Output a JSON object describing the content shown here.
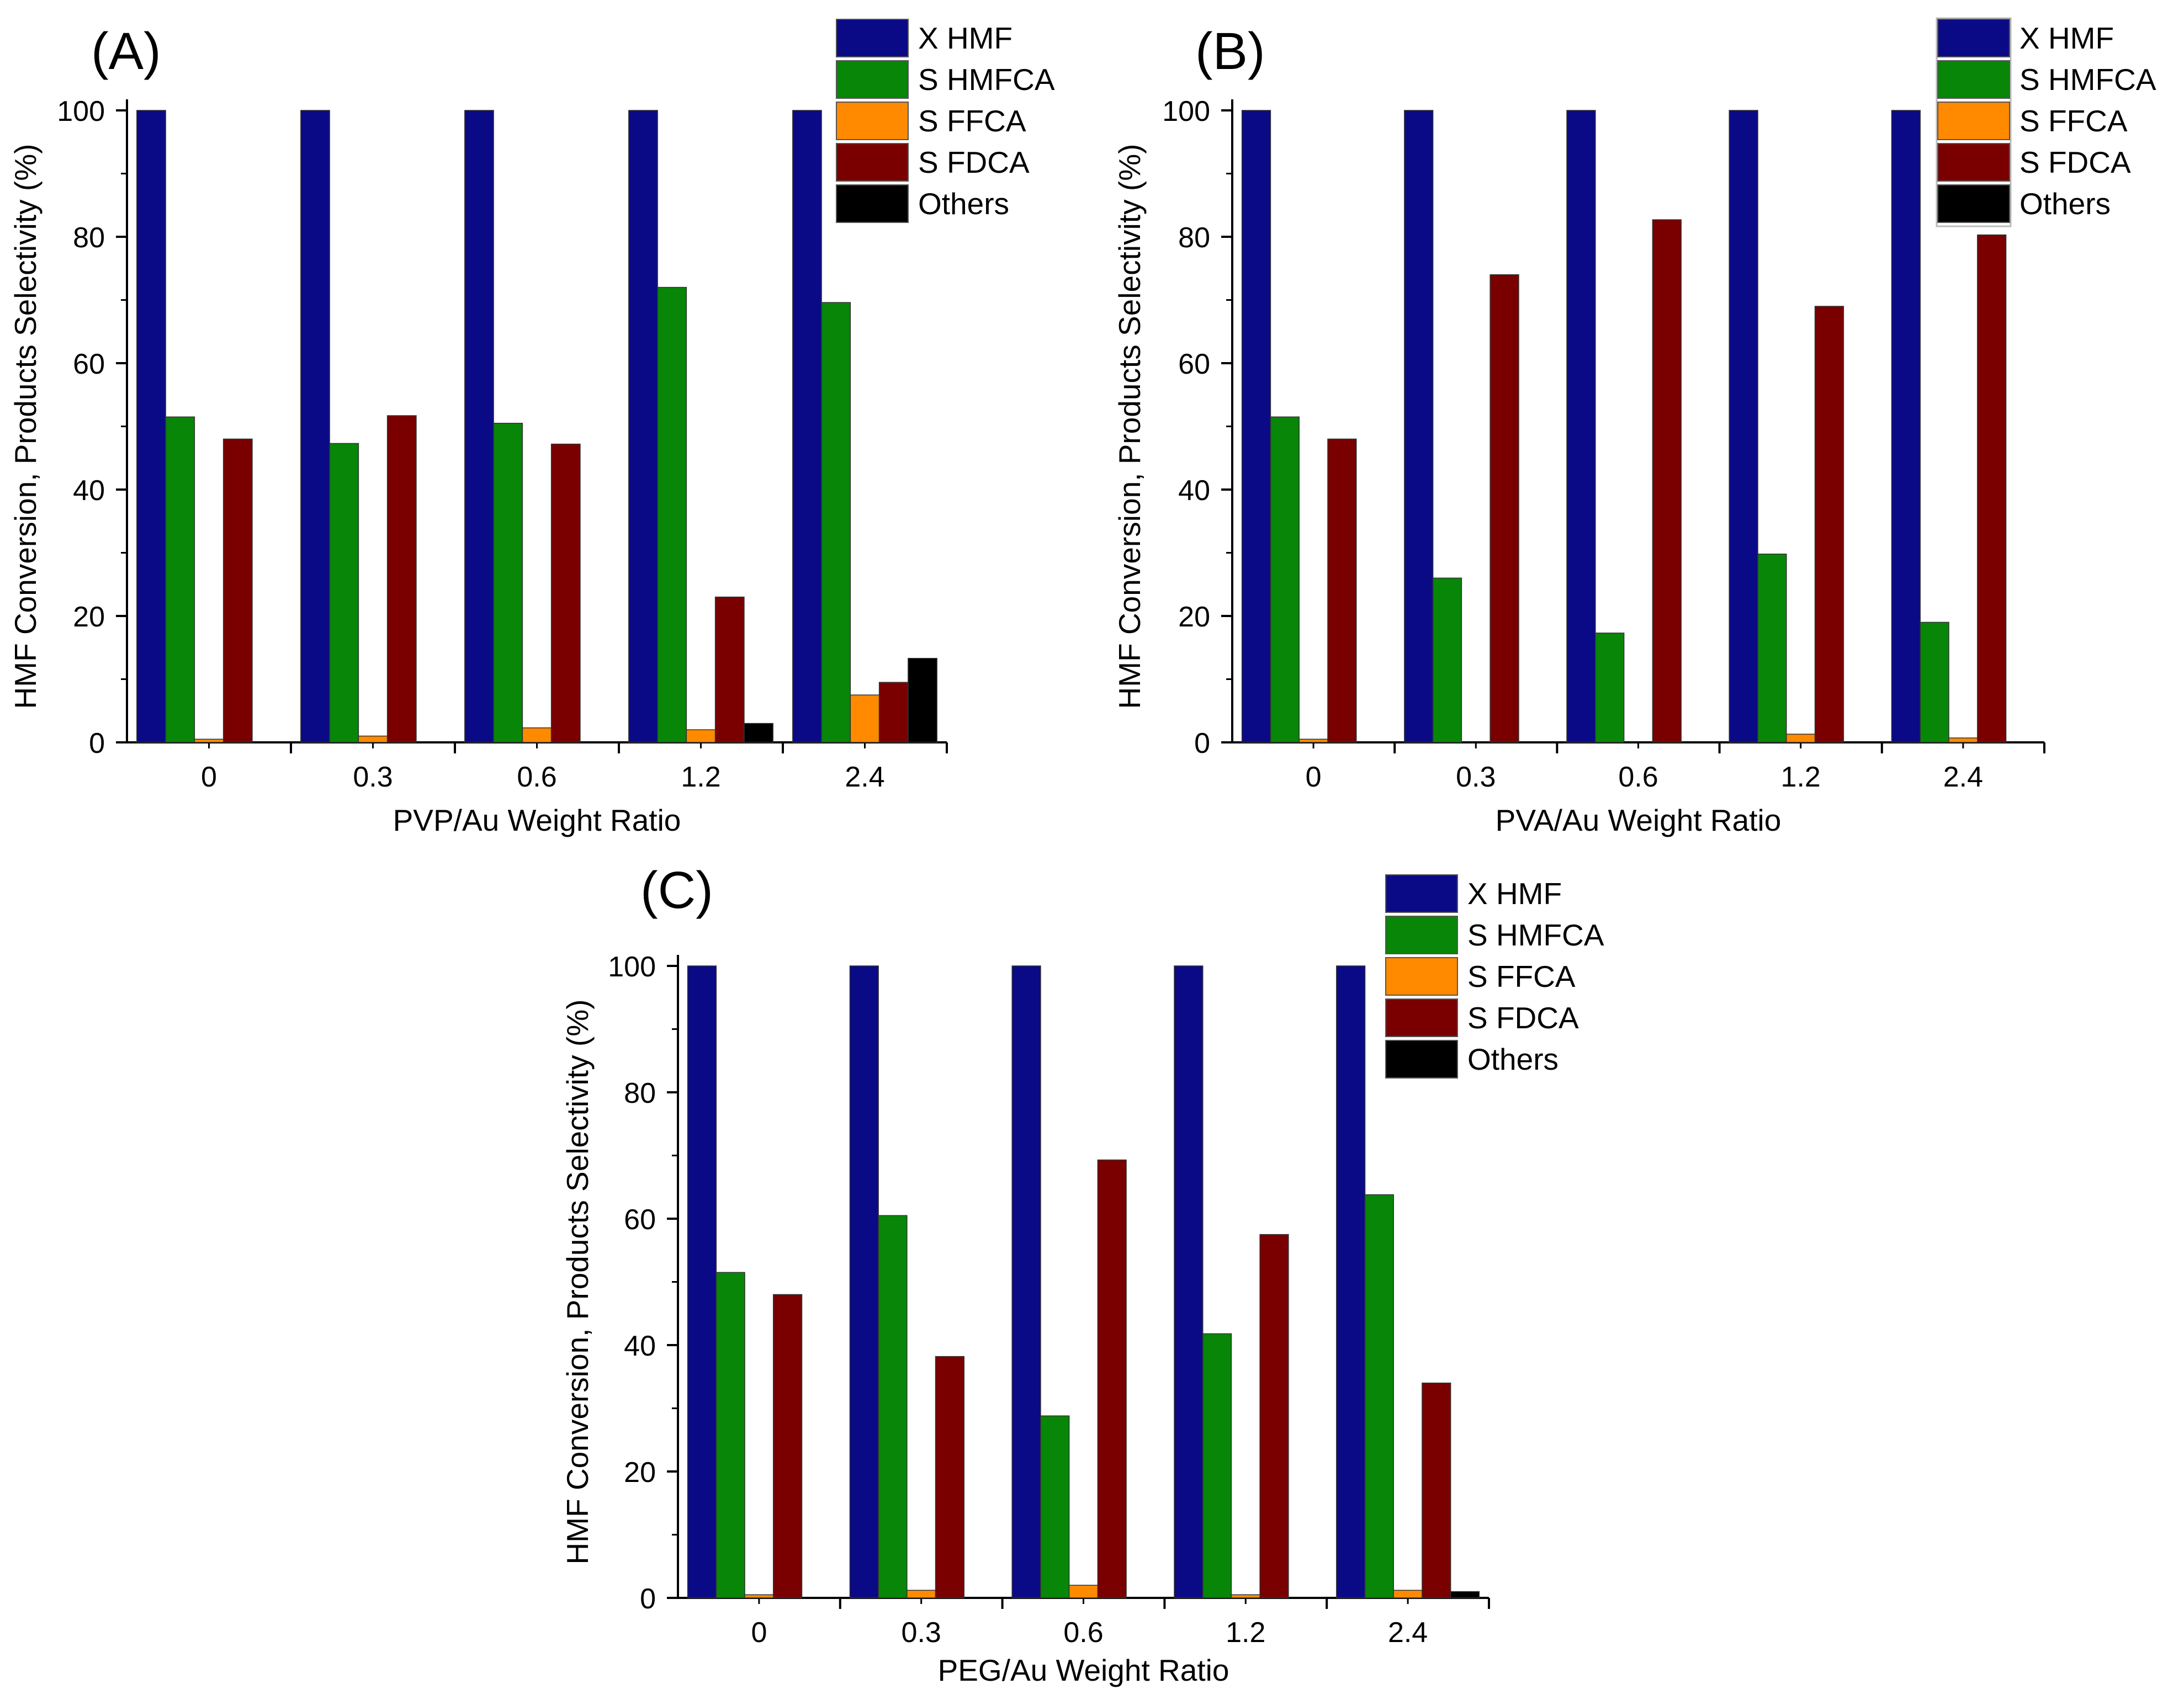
{
  "chart_data": [
    {
      "type": "bar",
      "panel_label": "(A)",
      "xlabel": "PVP/Au Weight Ratio",
      "ylabel": "HMF Conversion, Products Selectivity (%)",
      "ylim": [
        0,
        100
      ],
      "yticks": [
        "0",
        "20",
        "40",
        "60",
        "80",
        "100"
      ],
      "categories": [
        "0",
        "0.3",
        "0.6",
        "1.2",
        "2.4"
      ],
      "legend_position": "top-right",
      "grid": false,
      "series": [
        {
          "name": "X HMF",
          "color": "#0a0a86",
          "values": [
            100,
            100,
            100,
            100,
            100
          ]
        },
        {
          "name": "S HMFCA",
          "color": "#078607",
          "values": [
            51.5,
            47.3,
            50.5,
            72.0,
            69.6
          ]
        },
        {
          "name": "S FFCA",
          "color": "#ff8a00",
          "values": [
            0.5,
            1.0,
            2.3,
            2.0,
            7.5
          ]
        },
        {
          "name": "S FDCA",
          "color": "#7a0000",
          "values": [
            48.0,
            51.7,
            47.2,
            23.0,
            9.5
          ]
        },
        {
          "name": "Others",
          "color": "#000000",
          "values": [
            0,
            0,
            0,
            3.0,
            13.3
          ]
        }
      ]
    },
    {
      "type": "bar",
      "panel_label": "(B)",
      "xlabel": "PVA/Au Weight Ratio",
      "ylabel": "HMF Conversion, Products Selectivity (%)",
      "ylim": [
        0,
        100
      ],
      "yticks": [
        "0",
        "20",
        "40",
        "60",
        "80",
        "100"
      ],
      "categories": [
        "0",
        "0.3",
        "0.6",
        "1.2",
        "2.4"
      ],
      "legend_position": "top-right",
      "grid": false,
      "series": [
        {
          "name": "X HMF",
          "color": "#0a0a86",
          "values": [
            100,
            100,
            100,
            100,
            100
          ]
        },
        {
          "name": "S HMFCA",
          "color": "#078607",
          "values": [
            51.5,
            26.0,
            17.3,
            29.8,
            19.0
          ]
        },
        {
          "name": "S FFCA",
          "color": "#ff8a00",
          "values": [
            0.5,
            0,
            0,
            1.3,
            0.7
          ]
        },
        {
          "name": "S FDCA",
          "color": "#7a0000",
          "values": [
            48.0,
            74.0,
            82.7,
            69.0,
            80.3
          ]
        },
        {
          "name": "Others",
          "color": "#000000",
          "values": [
            0,
            0,
            0,
            0,
            0
          ]
        }
      ]
    },
    {
      "type": "bar",
      "panel_label": "(C)",
      "xlabel": "PEG/Au Weight Ratio",
      "ylabel": "HMF Conversion, Products Selectivity (%)",
      "ylim": [
        0,
        100
      ],
      "yticks": [
        "0",
        "20",
        "40",
        "60",
        "80",
        "100"
      ],
      "categories": [
        "0",
        "0.3",
        "0.6",
        "1.2",
        "2.4"
      ],
      "legend_position": "top-right",
      "grid": false,
      "series": [
        {
          "name": "X HMF",
          "color": "#0a0a86",
          "values": [
            100,
            100,
            100,
            100,
            100
          ]
        },
        {
          "name": "S HMFCA",
          "color": "#078607",
          "values": [
            51.5,
            60.5,
            28.8,
            41.8,
            63.8
          ]
        },
        {
          "name": "S FFCA",
          "color": "#ff8a00",
          "values": [
            0.5,
            1.2,
            2.0,
            0.5,
            1.2
          ]
        },
        {
          "name": "S FDCA",
          "color": "#7a0000",
          "values": [
            48.0,
            38.2,
            69.3,
            57.5,
            34.0
          ]
        },
        {
          "name": "Others",
          "color": "#000000",
          "values": [
            0,
            0,
            0,
            0,
            1.0
          ]
        }
      ]
    }
  ]
}
